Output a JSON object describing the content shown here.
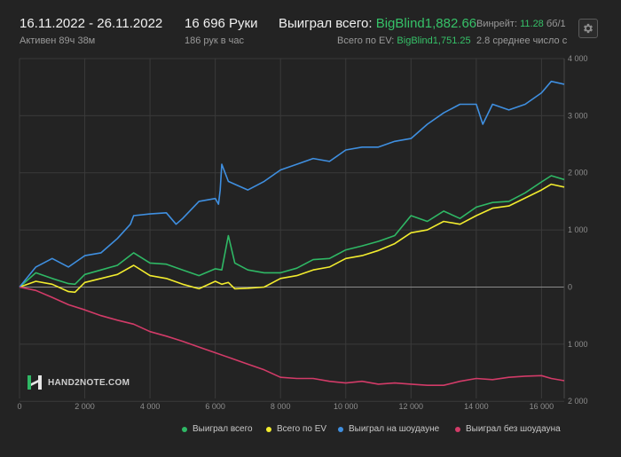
{
  "header": {
    "date_range": "16.11.2022 - 26.11.2022",
    "active": "Активен 89ч 38м",
    "hands": "16 696 Руки",
    "hands_per_hour": "186 рук в час",
    "won_total_label": "Выиграл всего:",
    "won_total_value": "BigBlind1,882.66",
    "ev_label": "Всего по EV:",
    "ev_value": "BigBlind1,751.25",
    "winrate_label": "Винрейт:",
    "winrate_value": "11.28",
    "winrate_unit": "бб/1",
    "avg_text": "2.8 среднее число с"
  },
  "logo_text": "HAND2NOTE.COM",
  "colors": {
    "background": "#232323",
    "green_series": "#2fb865",
    "yellow_series": "#f2ec2e",
    "blue_series": "#3f8fe0",
    "pink_series": "#d23b68",
    "grid": "#3a3a3a",
    "zero_line": "#8a8a8a",
    "accent_green": "#36c168"
  },
  "icons": {
    "settings": "gear-icon",
    "logo": "hand2note-logo-icon"
  },
  "chart_data": {
    "type": "line",
    "xlim": [
      0,
      16696
    ],
    "ylim": [
      -1950,
      4000
    ],
    "x_ticks": [
      0,
      2000,
      4000,
      6000,
      8000,
      10000,
      12000,
      14000,
      16000
    ],
    "x_tick_labels": [
      "0",
      "2 000",
      "4 000",
      "6 000",
      "8 000",
      "10 000",
      "12 000",
      "14 000",
      "16 000"
    ],
    "y_ticks": [
      4000,
      3000,
      2000,
      1000,
      0,
      -1000,
      -2000
    ],
    "y_tick_labels": [
      "4 000",
      "3 000",
      "2 000",
      "1 000",
      "0",
      "1 000",
      "2 000"
    ],
    "series": [
      {
        "name": "Выиграл всего",
        "color": "#2fb865",
        "x": [
          0,
          500,
          1000,
          1500,
          1700,
          2000,
          2500,
          3000,
          3500,
          4000,
          4500,
          5000,
          5500,
          6000,
          6200,
          6400,
          6600,
          7000,
          7500,
          8000,
          8500,
          9000,
          9500,
          10000,
          10500,
          11000,
          11500,
          12000,
          12500,
          13000,
          13500,
          14000,
          14500,
          15000,
          15500,
          16000,
          16300,
          16696
        ],
        "values": [
          0,
          250,
          150,
          60,
          50,
          220,
          300,
          380,
          600,
          420,
          400,
          300,
          200,
          320,
          300,
          900,
          420,
          300,
          250,
          250,
          330,
          480,
          500,
          650,
          720,
          800,
          900,
          1250,
          1150,
          1330,
          1200,
          1400,
          1480,
          1500,
          1650,
          1840,
          1950,
          1883
        ]
      },
      {
        "name": "Всего по EV",
        "color": "#f2ec2e",
        "x": [
          0,
          500,
          1000,
          1500,
          1700,
          2000,
          2500,
          3000,
          3500,
          4000,
          4500,
          5000,
          5500,
          6000,
          6200,
          6400,
          6600,
          7000,
          7500,
          8000,
          8500,
          9000,
          9500,
          10000,
          10500,
          11000,
          11500,
          12000,
          12500,
          13000,
          13500,
          14000,
          14500,
          15000,
          15500,
          16000,
          16300,
          16696
        ],
        "values": [
          0,
          100,
          50,
          -80,
          -90,
          80,
          150,
          220,
          380,
          200,
          150,
          50,
          -30,
          100,
          50,
          80,
          -30,
          -20,
          0,
          150,
          200,
          300,
          350,
          500,
          550,
          640,
          760,
          950,
          1000,
          1150,
          1100,
          1250,
          1380,
          1420,
          1560,
          1700,
          1800,
          1751
        ]
      },
      {
        "name": "Выиграл на шоудауне",
        "color": "#3f8fe0",
        "x": [
          0,
          500,
          1000,
          1500,
          2000,
          2500,
          3000,
          3400,
          3500,
          4000,
          4500,
          4800,
          5000,
          5500,
          6000,
          6100,
          6150,
          6200,
          6400,
          6600,
          7000,
          7500,
          8000,
          8500,
          9000,
          9500,
          10000,
          10500,
          11000,
          11500,
          12000,
          12500,
          13000,
          13500,
          14000,
          14200,
          14500,
          15000,
          15500,
          16000,
          16300,
          16696
        ],
        "values": [
          0,
          350,
          500,
          350,
          550,
          600,
          850,
          1100,
          1250,
          1280,
          1300,
          1100,
          1200,
          1500,
          1550,
          1450,
          1700,
          2150,
          1850,
          1800,
          1700,
          1850,
          2050,
          2150,
          2250,
          2200,
          2400,
          2450,
          2450,
          2550,
          2600,
          2850,
          3050,
          3200,
          3200,
          2850,
          3200,
          3100,
          3200,
          3400,
          3600,
          3550
        ]
      },
      {
        "name": "Выиграл без шоудауна",
        "color": "#d23b68",
        "x": [
          0,
          500,
          1000,
          1500,
          2000,
          2500,
          3000,
          3500,
          4000,
          4500,
          5000,
          5500,
          6000,
          6500,
          7000,
          7500,
          8000,
          8500,
          9000,
          9500,
          10000,
          10500,
          11000,
          11500,
          12000,
          12500,
          13000,
          13500,
          14000,
          14500,
          15000,
          15500,
          16000,
          16300,
          16696
        ],
        "values": [
          0,
          -60,
          -180,
          -310,
          -400,
          -500,
          -580,
          -650,
          -780,
          -860,
          -950,
          -1050,
          -1150,
          -1250,
          -1350,
          -1450,
          -1580,
          -1600,
          -1600,
          -1650,
          -1680,
          -1650,
          -1700,
          -1680,
          -1700,
          -1720,
          -1720,
          -1650,
          -1600,
          -1620,
          -1580,
          -1560,
          -1550,
          -1600,
          -1640
        ]
      }
    ],
    "legend_position": "bottom"
  }
}
